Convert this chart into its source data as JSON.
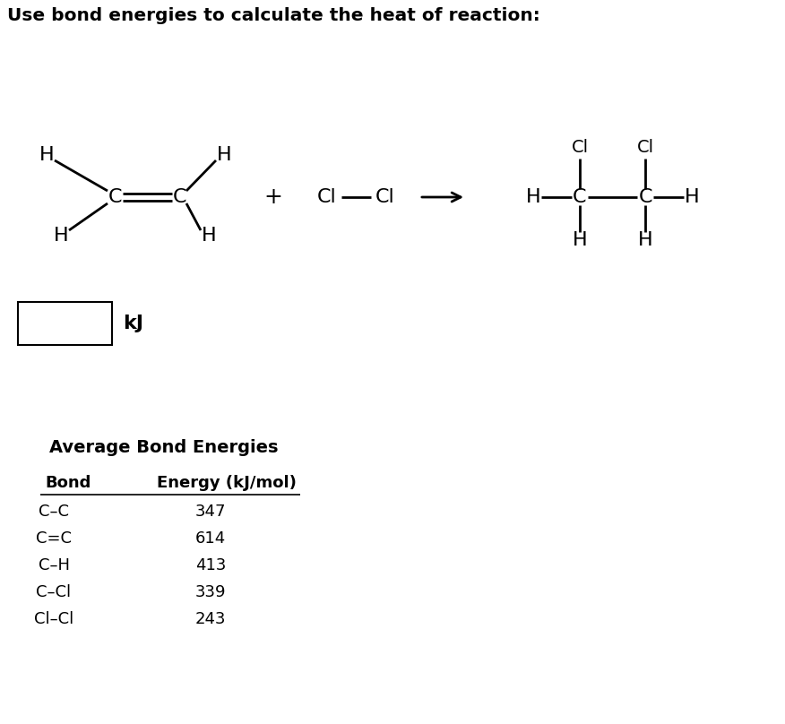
{
  "title": "Use bond energies to calculate the heat of reaction:",
  "title_fontsize": 14.5,
  "title_fontweight": "bold",
  "background_color": "#ffffff",
  "text_color": "#000000",
  "table_title": "Average Bond Energies",
  "table_title_fontsize": 14,
  "table_title_fontweight": "bold",
  "table_headers": [
    "Bond",
    "Energy (kJ/mol)"
  ],
  "table_header_fontsize": 13,
  "table_header_fontweight": "bold",
  "table_bonds": [
    "C–C",
    "C=C",
    "C–H",
    "C–Cl",
    "Cl–Cl"
  ],
  "table_energies": [
    "347",
    "614",
    "413",
    "339",
    "243"
  ],
  "table_data_fontsize": 13,
  "mol_fontsize": 16,
  "mol_fontweight": "normal",
  "kJ_label": "kJ",
  "kJ_fontsize": 16,
  "kJ_fontweight": "bold",
  "figsize": [
    8.76,
    8.08
  ],
  "dpi": 100
}
